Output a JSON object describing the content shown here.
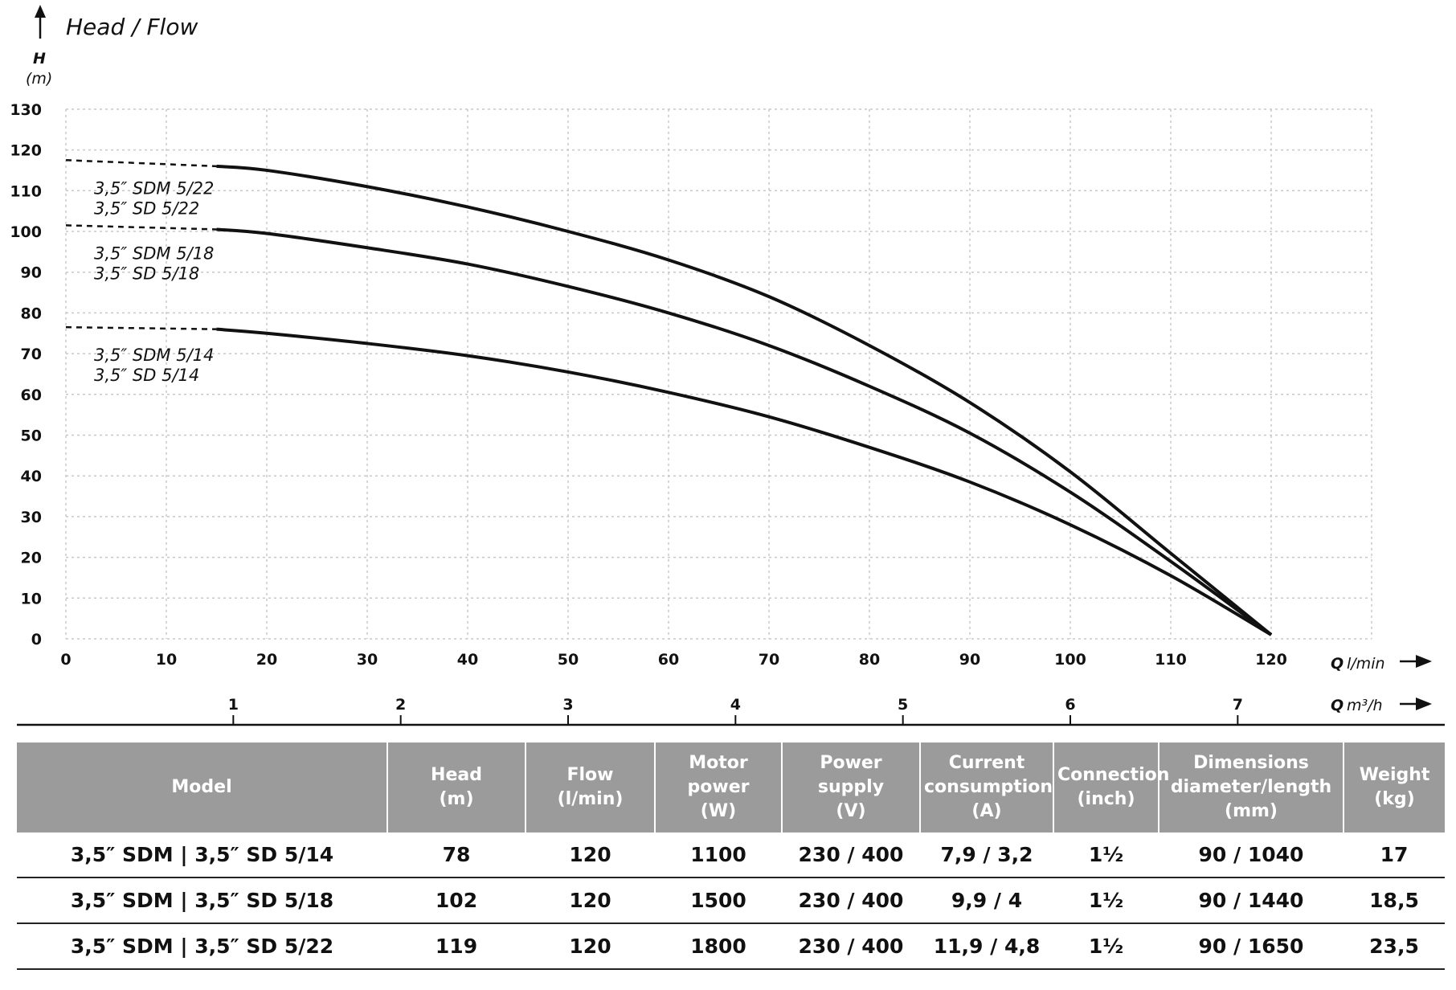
{
  "chart_data": {
    "type": "line",
    "title": "Head / Flow",
    "ylabel": "H",
    "yunit": "(m)",
    "xlabel": "Q",
    "xunit": "l/min",
    "x2label": "Q",
    "x2unit": "m³/h",
    "xlim": [
      0,
      130
    ],
    "ylim": [
      0,
      130
    ],
    "x_ticks": [
      0,
      10,
      20,
      30,
      40,
      50,
      60,
      70,
      80,
      90,
      100,
      110,
      120
    ],
    "y_ticks": [
      0,
      10,
      20,
      30,
      40,
      50,
      60,
      70,
      80,
      90,
      100,
      110,
      120,
      130
    ],
    "x2_ticks": [
      1,
      2,
      3,
      4,
      5,
      6,
      7
    ],
    "grid": true,
    "series": [
      {
        "name": "3,5″ SDM 5/22",
        "name2": "3,5″ SD 5/22",
        "dashed_x": [
          0,
          15
        ],
        "x": [
          0,
          15,
          20,
          30,
          40,
          50,
          60,
          70,
          80,
          90,
          100,
          110,
          120
        ],
        "y": [
          117.5,
          116,
          115,
          111,
          106,
          100,
          93,
          84,
          72,
          58,
          41,
          21,
          1
        ]
      },
      {
        "name": "3,5″ SDM 5/18",
        "name2": "3,5″ SD 5/18",
        "dashed_x": [
          0,
          15
        ],
        "x": [
          0,
          15,
          20,
          30,
          40,
          50,
          60,
          70,
          80,
          90,
          100,
          110,
          120
        ],
        "y": [
          101.5,
          100.5,
          99.5,
          96,
          92,
          86.5,
          80,
          72,
          62,
          50.5,
          36,
          19,
          1
        ]
      },
      {
        "name": "3,5″ SDM 5/14",
        "name2": "3,5″ SD 5/14",
        "dashed_x": [
          0,
          15
        ],
        "x": [
          0,
          15,
          20,
          30,
          40,
          50,
          60,
          70,
          80,
          90,
          100,
          110,
          120
        ],
        "y": [
          76.5,
          76,
          75,
          72.5,
          69.5,
          65.5,
          60.5,
          54.5,
          47,
          38.5,
          28,
          15.5,
          1
        ]
      }
    ]
  },
  "table": {
    "headers": [
      {
        "lines": [
          "Model"
        ]
      },
      {
        "lines": [
          "Head",
          "(m)"
        ]
      },
      {
        "lines": [
          "Flow",
          "(l/min)"
        ]
      },
      {
        "lines": [
          "Motor power",
          "(W)"
        ]
      },
      {
        "lines": [
          "Power supply",
          "(V)"
        ]
      },
      {
        "lines": [
          "Current",
          "consumption",
          "(A)"
        ]
      },
      {
        "lines": [
          "Connection",
          "(inch)"
        ]
      },
      {
        "lines": [
          "Dimensions",
          "diameter/length",
          "(mm)"
        ]
      },
      {
        "lines": [
          "Weight",
          "(kg)"
        ]
      }
    ],
    "rows": [
      [
        "3,5″ SDM | 3,5″ SD 5/14",
        "78",
        "120",
        "1100",
        "230 / 400",
        "7,9 / 3,2",
        "1½",
        "90 / 1040",
        "17"
      ],
      [
        "3,5″ SDM | 3,5″ SD 5/18",
        "102",
        "120",
        "1500",
        "230 / 400",
        "9,9 / 4",
        "1½",
        "90 / 1440",
        "18,5"
      ],
      [
        "3,5″ SDM | 3,5″ SD 5/22",
        "119",
        "120",
        "1800",
        "230 / 400",
        "11,9 / 4,8",
        "1½",
        "90 / 1650",
        "23,5"
      ]
    ]
  }
}
